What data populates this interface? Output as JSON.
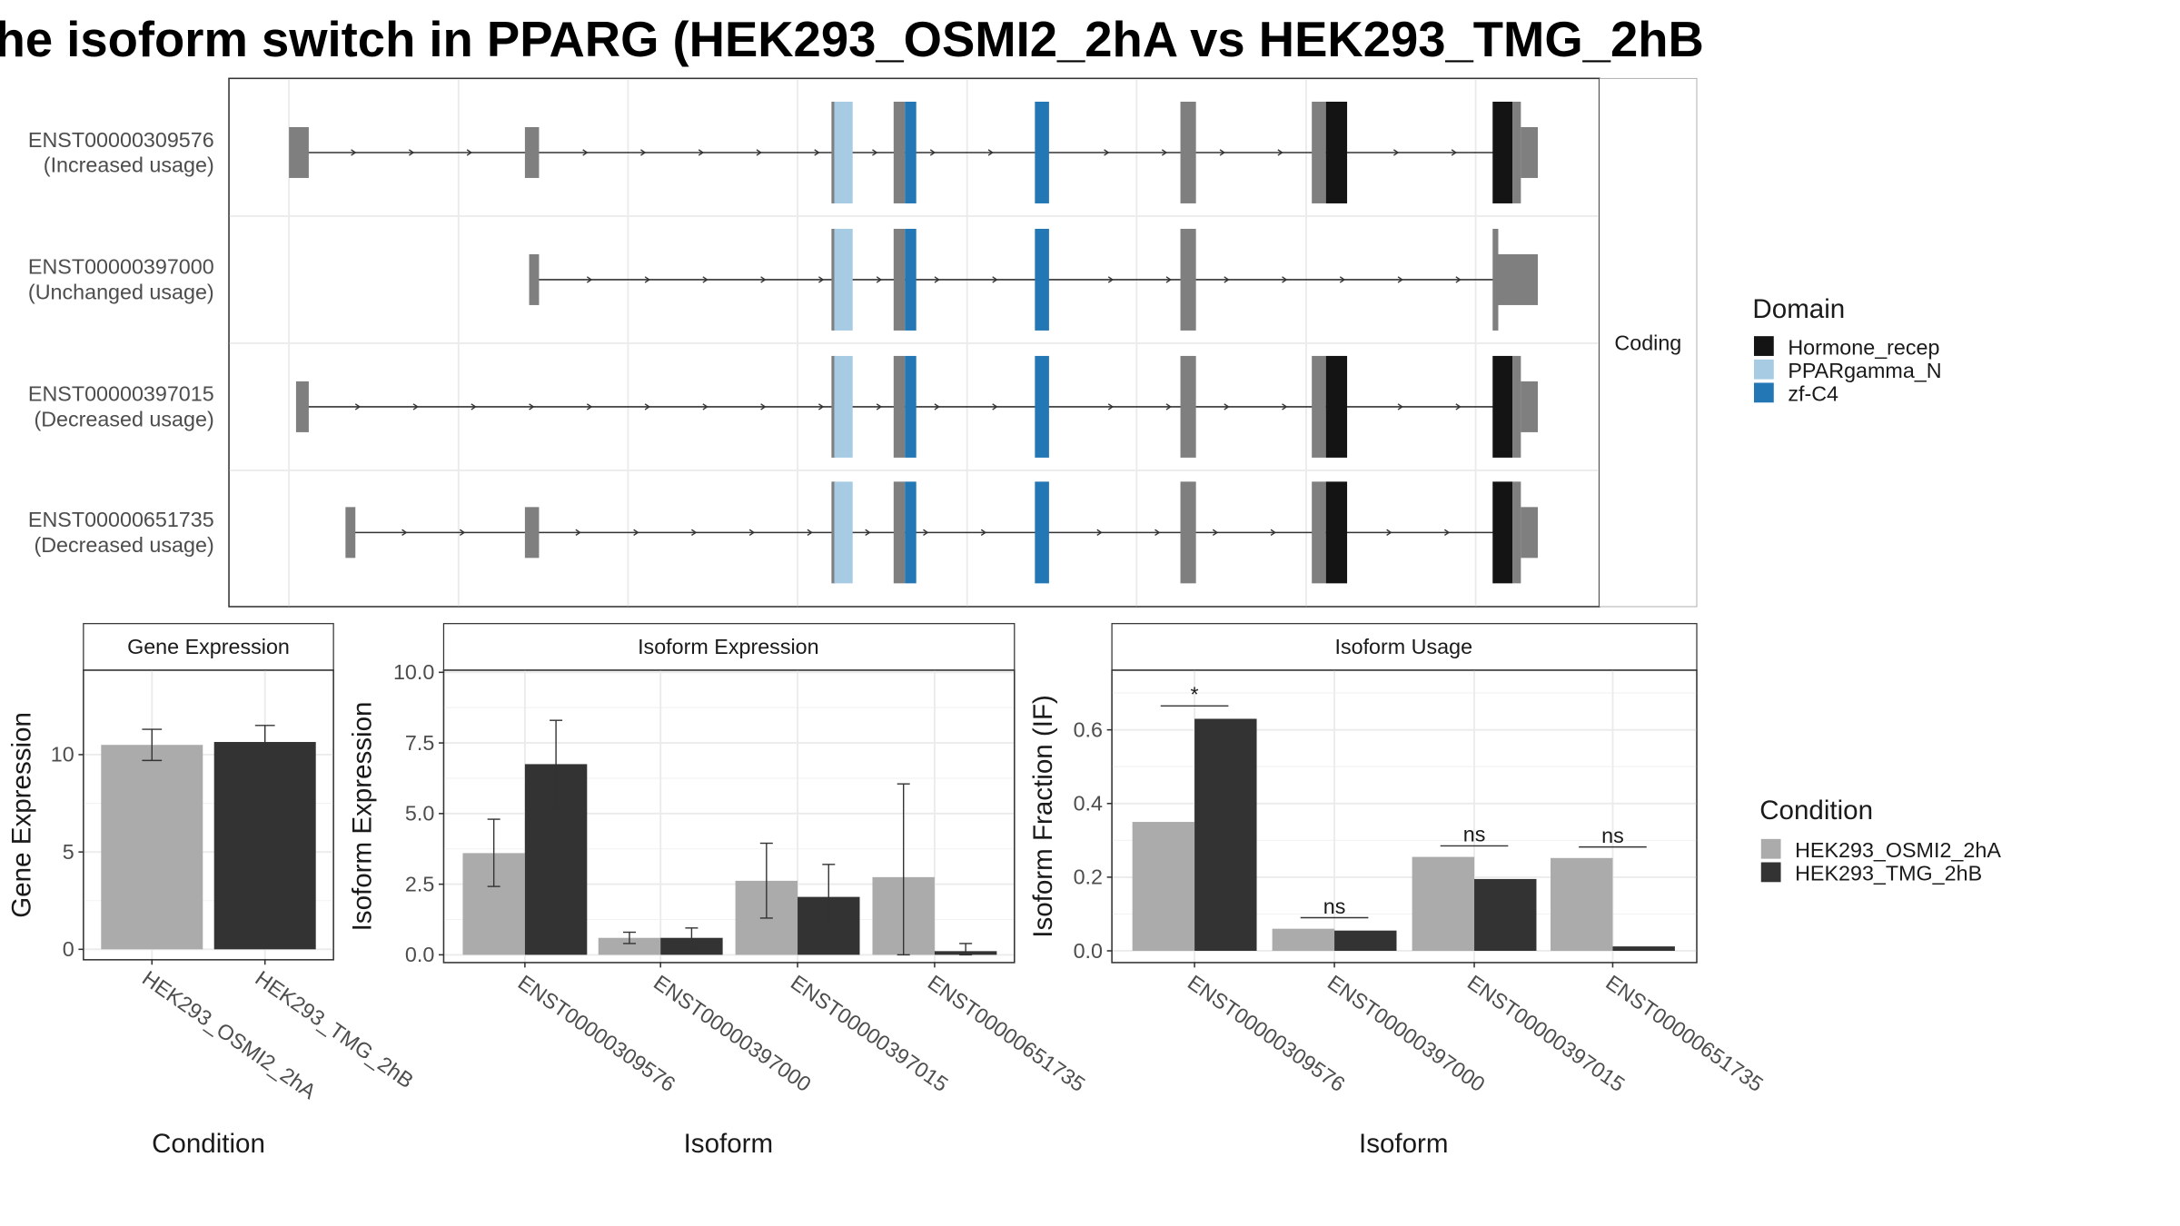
{
  "title": "he isoform switch in PPARG (HEK293_OSMI2_2hA vs HEK293_TMG_2hB",
  "colors": {
    "exon": "#7f7f7f",
    "Hormone_recep": "#141414",
    "PPARgamma_N": "#a6cbe3",
    "zf-C4": "#2377b5",
    "HEK293_OSMI2_2hA": "#ababab",
    "HEK293_TMG_2hB": "#333333"
  },
  "chart_data": [
    {
      "type": "gene-structure",
      "strip_label": "Coding",
      "isoforms": [
        {
          "id": "ENST00000309576",
          "usage": "(Increased usage)"
        },
        {
          "id": "ENST00000397000",
          "usage": "(Unchanged usage)"
        },
        {
          "id": "ENST00000397015",
          "usage": "(Decreased usage)"
        },
        {
          "id": "ENST00000651735",
          "usage": "(Decreased usage)"
        }
      ],
      "legend_title": "Domain",
      "domains": [
        "Hormone_recep",
        "PPARgamma_N",
        "zf-C4"
      ]
    },
    {
      "type": "bar",
      "title": "Gene Expression",
      "xlabel": "Condition",
      "ylabel": "Gene Expression",
      "categories": [
        "HEK293_OSMI2_2hA",
        "HEK293_TMG_2hB"
      ],
      "values": [
        10.5,
        10.65
      ],
      "errors": [
        [
          9.7,
          11.3
        ],
        [
          9.8,
          11.5
        ]
      ],
      "ylim": [
        -0.5,
        14.3
      ],
      "yticks": [
        0,
        5,
        10
      ]
    },
    {
      "type": "bar",
      "title": "Isoform Expression",
      "xlabel": "Isoform",
      "ylabel": "Isoform Expression",
      "categories": [
        "ENST00000309576",
        "ENST00000397000",
        "ENST00000397015",
        "ENST00000651735"
      ],
      "series": [
        {
          "name": "HEK293_OSMI2_2hA",
          "values": [
            3.6,
            0.6,
            2.62,
            2.75
          ],
          "errors": [
            [
              2.42,
              4.8
            ],
            [
              0.4,
              0.8
            ],
            [
              1.3,
              3.95
            ],
            [
              0.0,
              6.05
            ]
          ]
        },
        {
          "name": "HEK293_TMG_2hB",
          "values": [
            6.75,
            0.6,
            2.05,
            0.13
          ],
          "errors": [
            [
              5.2,
              8.3
            ],
            [
              0.25,
              0.95
            ],
            [
              0.9,
              3.2
            ],
            [
              0.0,
              0.4
            ]
          ]
        }
      ],
      "ylim": [
        -0.25,
        10.05
      ],
      "yticks": [
        "0.0",
        "2.5",
        "5.0",
        "7.5",
        "10.0"
      ]
    },
    {
      "type": "bar",
      "title": "Isoform Usage",
      "xlabel": "Isoform",
      "ylabel": "Isoform Fraction (IF)",
      "categories": [
        "ENST00000309576",
        "ENST00000397000",
        "ENST00000397015",
        "ENST00000651735"
      ],
      "series": [
        {
          "name": "HEK293_OSMI2_2hA",
          "values": [
            0.35,
            0.06,
            0.255,
            0.252
          ]
        },
        {
          "name": "HEK293_TMG_2hB",
          "values": [
            0.63,
            0.055,
            0.195,
            0.012
          ]
        }
      ],
      "significance": [
        "*",
        "ns",
        "ns",
        "ns"
      ],
      "sig_y": [
        0.665,
        0.09,
        0.285,
        0.282
      ],
      "ylim": [
        -0.03,
        0.76
      ],
      "yticks": [
        "0.0",
        "0.2",
        "0.4",
        "0.6"
      ],
      "legend_title": "Condition"
    }
  ]
}
